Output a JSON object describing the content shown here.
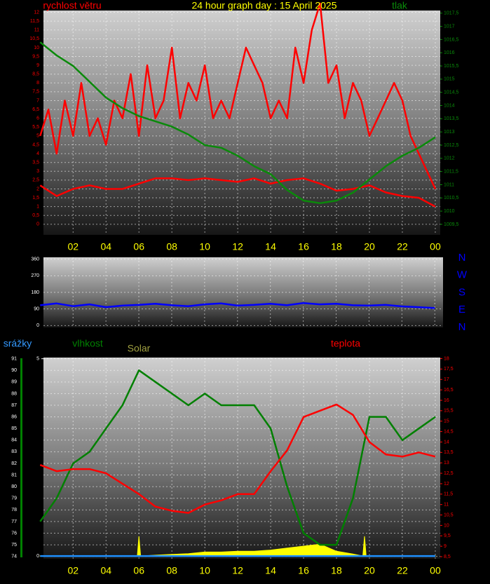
{
  "chart_data": [
    {
      "type": "line",
      "title": "24 hour graph day : 15 April 2025",
      "ylabel": "rychlost větru",
      "y2label": "tlak",
      "xlim": [
        0.2,
        24.3
      ],
      "xticks": [
        {
          "value": 2,
          "label": "02"
        },
        {
          "value": 4,
          "label": "04"
        },
        {
          "value": 6,
          "label": "06"
        },
        {
          "value": 8,
          "label": "08"
        },
        10,
        12,
        14,
        16,
        18,
        20,
        22,
        {
          "value": 24,
          "label": "00"
        }
      ],
      "ylim": [
        -0.6,
        12.1
      ],
      "yticks": [
        0,
        {
          "value": 0.5,
          "label": "0,5"
        },
        1,
        {
          "value": 1.5,
          "label": "1,5"
        },
        2,
        {
          "value": 2.5,
          "label": "2,5"
        },
        3,
        {
          "value": 3.5,
          "label": "3,5"
        },
        4,
        {
          "value": 4.5,
          "label": "4,5"
        },
        5,
        {
          "value": 5.5,
          "label": "5,5"
        },
        6,
        {
          "value": 6.5,
          "label": "6,5"
        },
        7,
        {
          "value": 7.5,
          "label": "7,5"
        },
        8,
        {
          "value": 8.5,
          "label": "8,5"
        },
        9,
        {
          "value": 9.5,
          "label": "9,5"
        },
        10,
        {
          "value": 10.5,
          "label": "10,5"
        },
        11,
        {
          "value": 11.5,
          "label": "11,5"
        },
        12
      ],
      "y2lim": [
        1009.1,
        1017.6
      ],
      "y2ticks": [
        {
          "value": 1009.5,
          "label": "1009,5"
        },
        1010,
        {
          "value": 1010.5,
          "label": "1010,5"
        },
        1011,
        {
          "value": 1011.5,
          "label": "1011,5"
        },
        1012,
        {
          "value": 1012.5,
          "label": "1012,5"
        },
        1013,
        {
          "value": 1013.5,
          "label": "1013,5"
        },
        1014,
        {
          "value": 1014.5,
          "label": "1014,5"
        },
        1015,
        {
          "value": 1015.5,
          "label": "1015,5"
        },
        1016,
        {
          "value": 1016.5,
          "label": "1016,5"
        },
        1017,
        {
          "value": 1017.5,
          "label": "1017,5"
        }
      ],
      "grid": true,
      "series": [
        {
          "color": "#ff0000",
          "x": [
            0,
            0.5,
            1,
            1.5,
            2,
            2.5,
            3,
            3.5,
            4,
            4.5,
            5,
            5.5,
            6,
            6.5,
            7,
            7.5,
            8,
            8.5,
            9,
            9.5,
            10,
            10.5,
            11,
            11.5,
            12,
            12.5,
            13,
            13.5,
            14,
            14.5,
            15,
            15.5,
            16,
            16.5,
            17,
            17.5,
            18,
            18.5,
            19,
            19.5,
            20,
            20.5,
            21,
            21.5,
            22,
            22.5,
            23,
            23.5,
            24
          ],
          "values": [
            5,
            6.5,
            4,
            7,
            5,
            8,
            5,
            6,
            4.5,
            7,
            6,
            8.5,
            5,
            9,
            6,
            7,
            10,
            6,
            8,
            7,
            9,
            6,
            7,
            6,
            8,
            10,
            9,
            8,
            6,
            7,
            6,
            10,
            8,
            11,
            12.5,
            8,
            9,
            6,
            8,
            7,
            5,
            6,
            7,
            8,
            7,
            5,
            4,
            3,
            2
          ]
        },
        {
          "color": "#ff0000",
          "x": [
            0,
            1,
            2,
            3,
            4,
            5,
            6,
            7,
            8,
            9,
            10,
            11,
            12,
            13,
            14,
            15,
            16,
            17,
            18,
            19,
            20,
            21,
            22,
            23,
            24
          ],
          "values": [
            2.2,
            1.6,
            2,
            2.2,
            2,
            2,
            2.3,
            2.6,
            2.6,
            2.5,
            2.6,
            2.5,
            2.4,
            2.6,
            2.3,
            2.5,
            2.6,
            2.3,
            1.9,
            2,
            2.2,
            1.8,
            1.6,
            1.5,
            1
          ]
        },
        {
          "color": "#0a8a0a",
          "axis": "y2",
          "x": [
            0,
            1,
            2,
            3,
            4,
            5,
            6,
            7,
            8,
            9,
            10,
            11,
            12,
            13,
            14,
            15,
            16,
            17,
            18,
            19,
            20,
            21,
            22,
            23,
            24
          ],
          "values": [
            1016.4,
            1015.9,
            1015.5,
            1014.9,
            1014.3,
            1013.9,
            1013.6,
            1013.4,
            1013.2,
            1012.9,
            1012.5,
            1012.4,
            1012.1,
            1011.7,
            1011.4,
            1010.8,
            1010.4,
            1010.3,
            1010.4,
            1010.7,
            1011.2,
            1011.7,
            1012.1,
            1012.4,
            1012.8
          ]
        }
      ]
    },
    {
      "type": "line",
      "direction_labels": [
        "N",
        "W",
        "S",
        "E",
        "N"
      ],
      "xlim": [
        0.2,
        24.5
      ],
      "xticks": [
        2,
        4,
        6,
        8,
        10,
        12,
        14,
        16,
        18,
        20,
        22,
        24
      ],
      "ylim": [
        -10,
        370
      ],
      "yticks": [
        0,
        90,
        180,
        270,
        360
      ],
      "grid": true,
      "series": [
        {
          "color": "#0000ff",
          "x": [
            0,
            1,
            2,
            3,
            4,
            5,
            6,
            7,
            8,
            9,
            10,
            11,
            12,
            13,
            14,
            15,
            16,
            17,
            18,
            19,
            20,
            21,
            22,
            23,
            24
          ],
          "values": [
            110,
            120,
            105,
            115,
            100,
            108,
            112,
            118,
            110,
            105,
            115,
            120,
            108,
            112,
            118,
            110,
            122,
            115,
            118,
            110,
            108,
            112,
            104,
            100,
            95
          ]
        }
      ]
    },
    {
      "type": "line",
      "ylabel": "vlhkost",
      "y2label": "teplota",
      "y3label": "srážky",
      "xlim": [
        0.2,
        24.3
      ],
      "xticks": [
        {
          "value": 2,
          "label": "02"
        },
        {
          "value": 4,
          "label": "04"
        },
        {
          "value": 6,
          "label": "06"
        },
        {
          "value": 8,
          "label": "08"
        },
        10,
        12,
        14,
        16,
        18,
        20,
        22,
        {
          "value": 24,
          "label": "00"
        }
      ],
      "ylim": [
        73.8,
        91.1
      ],
      "yticks": [
        74,
        75,
        76,
        77,
        78,
        79,
        80,
        81,
        82,
        83,
        84,
        85,
        86,
        87,
        88,
        89,
        90,
        91
      ],
      "y2lim": [
        8.4,
        18.05
      ],
      "y2ticks": [
        {
          "value": 8.5,
          "label": "8,5"
        },
        9,
        {
          "value": 9.5,
          "label": "9,5"
        },
        10,
        {
          "value": 10.5,
          "label": "10,5"
        },
        11,
        {
          "value": 11.5,
          "label": "11,5"
        },
        12,
        {
          "value": 12.5,
          "label": "12,5"
        },
        13,
        {
          "value": 13.5,
          "label": "13,5"
        },
        14,
        {
          "value": 14.5,
          "label": "14,5"
        },
        15,
        {
          "value": 15.5,
          "label": "15,5"
        },
        16,
        {
          "value": 16.5,
          "label": "16,5"
        },
        17,
        {
          "value": 17.5,
          "label": "17,5"
        },
        18
      ],
      "y3lim": [
        -0.07,
        5.03
      ],
      "y3ticks": [
        0,
        5
      ],
      "grid": true,
      "series": [
        {
          "color": "#ffff00",
          "name": "Solar",
          "axis": "y3",
          "style": "area",
          "x": [
            0,
            5.9,
            6,
            6.1,
            7,
            8,
            9,
            10,
            11,
            12,
            13,
            14,
            15,
            16,
            17,
            18,
            19,
            19.6,
            19.7,
            19.8,
            20,
            24
          ],
          "values": [
            0,
            0,
            0.5,
            0,
            0.02,
            0.04,
            0.06,
            0.1,
            0.1,
            0.12,
            0.12,
            0.15,
            0.2,
            0.25,
            0.3,
            0.12,
            0.05,
            0,
            0.5,
            0,
            0,
            0
          ]
        },
        {
          "color": "#1e90ff",
          "axis": "y3",
          "x": [
            0,
            24
          ],
          "values": [
            0,
            0
          ]
        },
        {
          "color": "#008000",
          "x": [
            0,
            1,
            2,
            3,
            4,
            5,
            6,
            7,
            8,
            9,
            10,
            11,
            12,
            13,
            14,
            15,
            16,
            17,
            18,
            19,
            20,
            21,
            22,
            23,
            24
          ],
          "values": [
            77,
            79,
            82,
            83,
            85,
            87,
            90,
            89,
            88,
            87,
            88,
            87,
            87,
            87,
            85,
            80,
            76,
            75,
            75,
            79,
            86,
            86,
            84,
            85,
            86
          ]
        },
        {
          "color": "#ff0000",
          "axis": "y2",
          "x": [
            0,
            1,
            2,
            3,
            4,
            5,
            6,
            7,
            8,
            9,
            10,
            11,
            12,
            13,
            14,
            15,
            16,
            17,
            18,
            19,
            20,
            21,
            22,
            23,
            24
          ],
          "values": [
            12.9,
            12.6,
            12.7,
            12.7,
            12.5,
            12,
            11.5,
            10.9,
            10.7,
            10.6,
            11,
            11.2,
            11.5,
            11.5,
            12.6,
            13.6,
            15.2,
            15.5,
            15.8,
            15.3,
            14,
            13.4,
            13.3,
            13.5,
            13.3
          ]
        }
      ]
    }
  ]
}
